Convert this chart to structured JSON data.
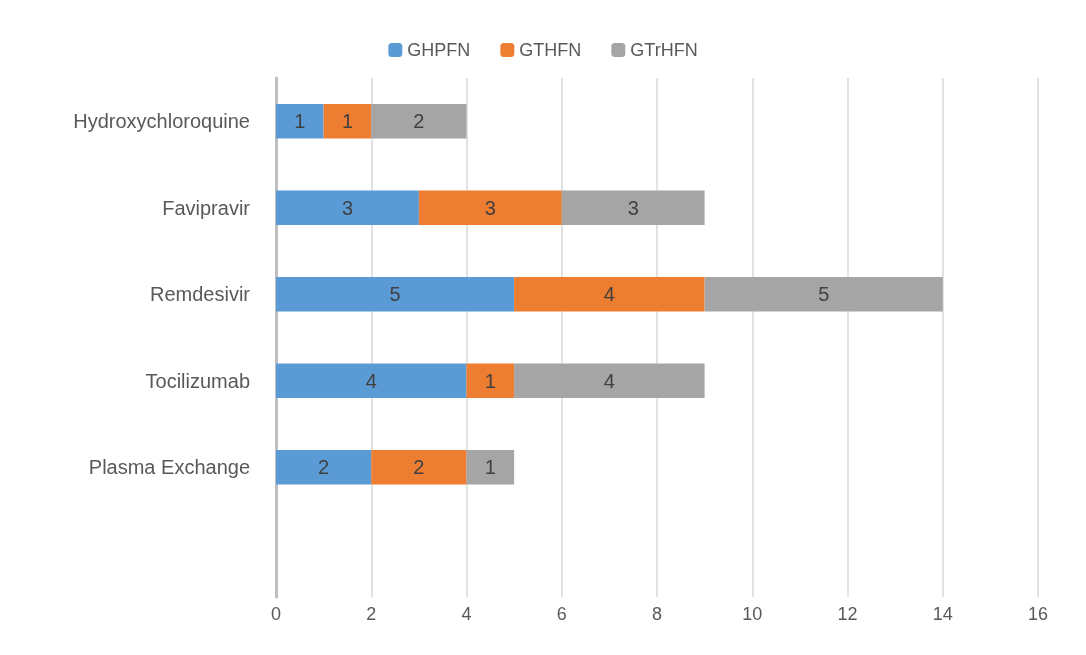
{
  "chart_data": {
    "type": "bar",
    "orientation": "horizontal",
    "stacked": true,
    "categories": [
      "Hydroxychloroquine",
      "Favipravir",
      "Remdesivir",
      "Tocilizumab",
      "Plasma Exchange",
      null
    ],
    "series": [
      {
        "name": "GHPFN",
        "color": "#5b9bd5",
        "values": [
          1,
          3,
          5,
          4,
          2,
          null
        ]
      },
      {
        "name": "GTHFN",
        "color": "#ed7d31",
        "values": [
          1,
          3,
          4,
          1,
          2,
          null
        ]
      },
      {
        "name": "GTrHFN",
        "color": "#a5a5a5",
        "values": [
          2,
          3,
          5,
          4,
          1,
          null
        ]
      }
    ],
    "xlim": [
      0,
      16
    ],
    "xticks": [
      0,
      2,
      4,
      6,
      8,
      10,
      12,
      14,
      16
    ],
    "grid": "x",
    "legend": "top",
    "data_labels": true
  }
}
